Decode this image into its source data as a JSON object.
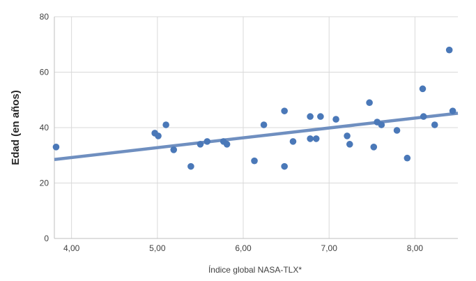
{
  "chart_data": {
    "type": "scatter",
    "xlabel": "Índice global NASA-TLX*",
    "ylabel": "Edad (en años)",
    "xlim": [
      3.8,
      8.5
    ],
    "ylim": [
      0,
      80
    ],
    "x_ticks": [
      "4,00",
      "5,00",
      "6,00",
      "7,00",
      "8,00"
    ],
    "x_tick_values": [
      4,
      5,
      6,
      7,
      8
    ],
    "y_ticks": [
      "0",
      "20",
      "40",
      "60",
      "80"
    ],
    "y_tick_values": [
      0,
      20,
      40,
      60,
      80
    ],
    "grid": "vertical-and-horizontal",
    "legend": "none",
    "colors": {
      "points": "#4a78b8",
      "trendline": "#6f8fc0",
      "grid": "#d9d9d9",
      "axis": "#bfbfbf"
    },
    "points": [
      {
        "x": 3.82,
        "y": 33
      },
      {
        "x": 4.97,
        "y": 38
      },
      {
        "x": 5.01,
        "y": 37
      },
      {
        "x": 5.1,
        "y": 41
      },
      {
        "x": 5.19,
        "y": 32
      },
      {
        "x": 5.39,
        "y": 26
      },
      {
        "x": 5.5,
        "y": 34
      },
      {
        "x": 5.58,
        "y": 35
      },
      {
        "x": 5.77,
        "y": 35
      },
      {
        "x": 5.81,
        "y": 34
      },
      {
        "x": 6.13,
        "y": 28
      },
      {
        "x": 6.24,
        "y": 41
      },
      {
        "x": 6.48,
        "y": 46
      },
      {
        "x": 6.48,
        "y": 26
      },
      {
        "x": 6.58,
        "y": 35
      },
      {
        "x": 6.78,
        "y": 44
      },
      {
        "x": 6.78,
        "y": 36
      },
      {
        "x": 6.85,
        "y": 36
      },
      {
        "x": 6.9,
        "y": 44
      },
      {
        "x": 7.08,
        "y": 43
      },
      {
        "x": 7.21,
        "y": 37
      },
      {
        "x": 7.24,
        "y": 34
      },
      {
        "x": 7.47,
        "y": 49
      },
      {
        "x": 7.52,
        "y": 33
      },
      {
        "x": 7.56,
        "y": 42
      },
      {
        "x": 7.61,
        "y": 41
      },
      {
        "x": 7.79,
        "y": 39
      },
      {
        "x": 7.91,
        "y": 29
      },
      {
        "x": 8.09,
        "y": 54
      },
      {
        "x": 8.1,
        "y": 44
      },
      {
        "x": 8.23,
        "y": 41
      },
      {
        "x": 8.4,
        "y": 68
      },
      {
        "x": 8.44,
        "y": 46
      }
    ],
    "trendline": {
      "x": [
        3.8,
        8.5
      ],
      "y": [
        28.5,
        45.2
      ]
    }
  }
}
